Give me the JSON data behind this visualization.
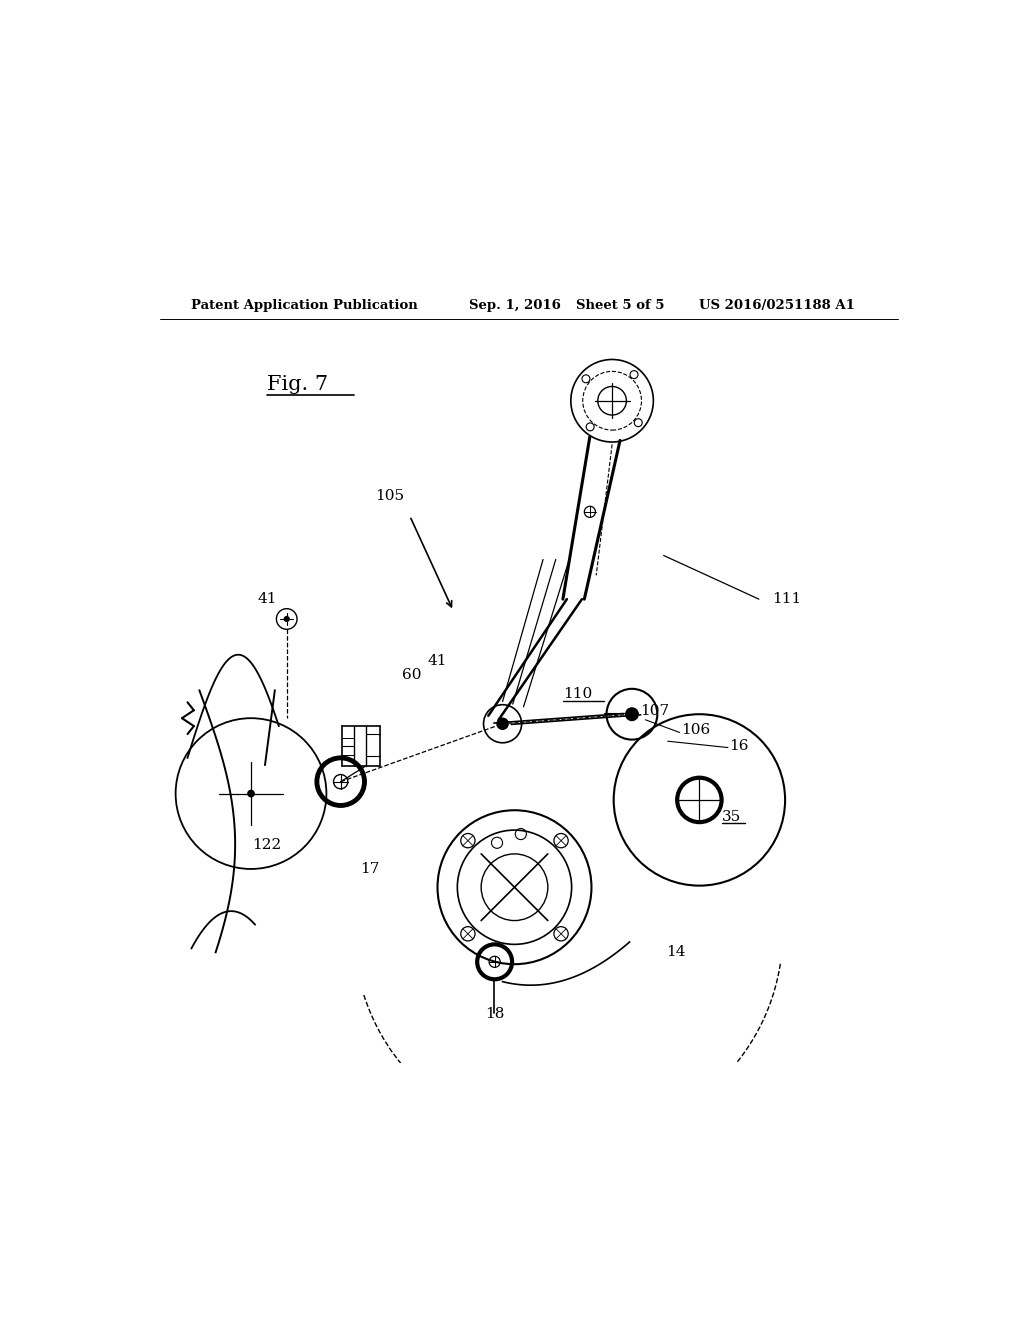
{
  "background_color": "#ffffff",
  "header_text": "Patent Application Publication",
  "header_date": "Sep. 1, 2016",
  "header_sheet": "Sheet 5 of 5",
  "header_patent": "US 2016/0251188 A1",
  "fig_label": "Fig. 7"
}
